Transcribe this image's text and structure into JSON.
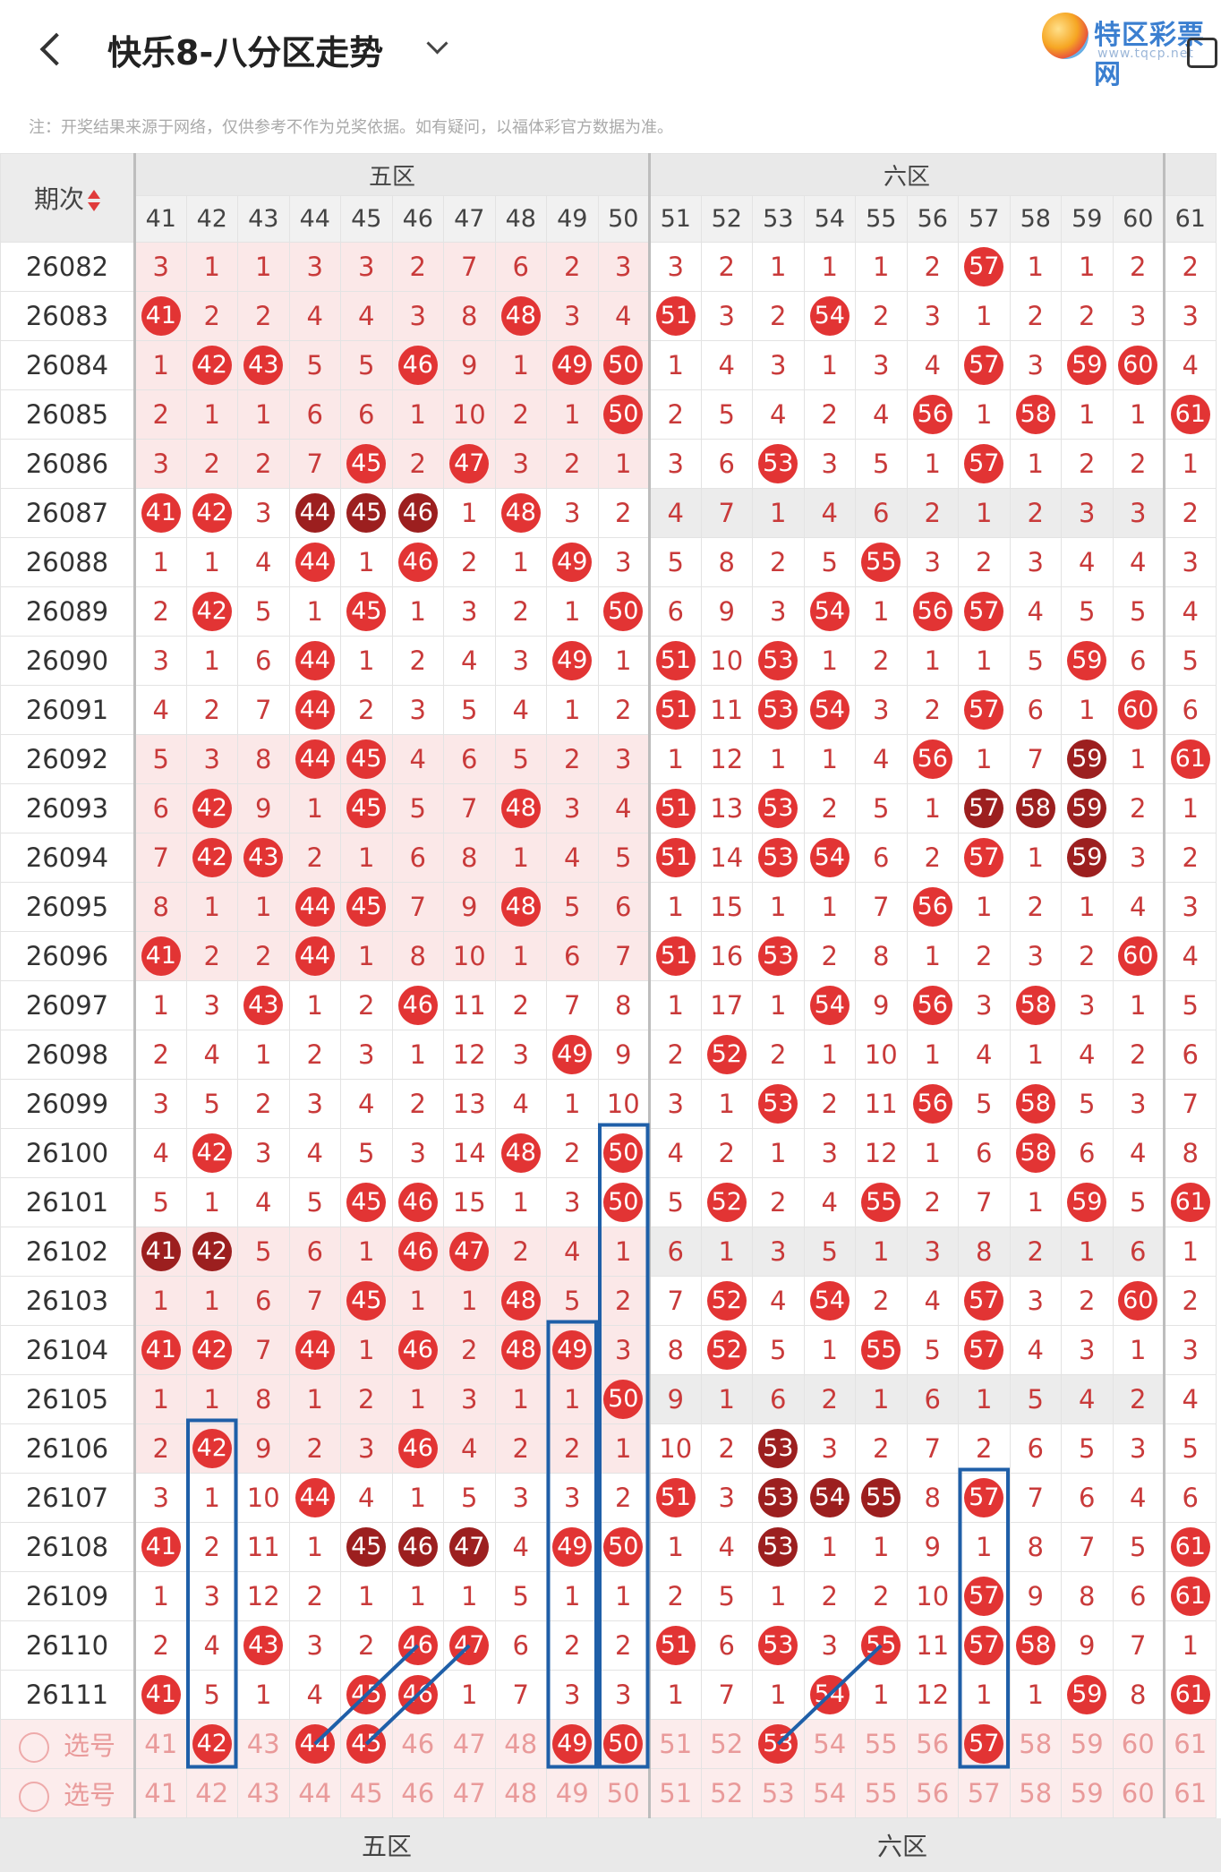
{
  "header": {
    "title": "快乐8-八分区走势"
  },
  "logo": {
    "text": "特区彩票网",
    "sub": "www.tqcp.net"
  },
  "note": "注：开奖结果来源于网络，仅供参考不作为兑奖依据。如有疑问，以福体彩官方数据为准。",
  "table": {
    "period_header": "期次",
    "zones": [
      "五区",
      "六区"
    ],
    "columns": [
      41,
      42,
      43,
      44,
      45,
      46,
      47,
      48,
      49,
      50,
      51,
      52,
      53,
      54,
      55,
      56,
      57,
      58,
      59,
      60,
      61
    ],
    "rows": [
      {
        "p": "26082",
        "v": [
          "3",
          "1",
          "1",
          "3",
          "3",
          "2",
          "7",
          "6",
          "2",
          "3",
          "3",
          "2",
          "1",
          "1",
          "1",
          "2",
          "57",
          "1",
          "1",
          "2",
          "2"
        ]
      },
      {
        "p": "26083",
        "v": [
          "41",
          "2",
          "2",
          "4",
          "4",
          "3",
          "8",
          "48",
          "3",
          "4",
          "51",
          "3",
          "2",
          "54",
          "2",
          "3",
          "1",
          "2",
          "2",
          "3",
          "3"
        ]
      },
      {
        "p": "26084",
        "v": [
          "1",
          "42",
          "43",
          "5",
          "5",
          "46",
          "9",
          "1",
          "49",
          "50",
          "1",
          "4",
          "3",
          "1",
          "3",
          "4",
          "57",
          "3",
          "59",
          "60",
          "4"
        ]
      },
      {
        "p": "26085",
        "v": [
          "2",
          "1",
          "1",
          "6",
          "6",
          "1",
          "10",
          "2",
          "1",
          "50",
          "2",
          "5",
          "4",
          "2",
          "4",
          "56",
          "1",
          "58",
          "1",
          "1",
          "61"
        ]
      },
      {
        "p": "26086",
        "v": [
          "3",
          "2",
          "2",
          "7",
          "45",
          "2",
          "47",
          "3",
          "2",
          "1",
          "3",
          "6",
          "53",
          "3",
          "5",
          "1",
          "57",
          "1",
          "2",
          "2",
          "1"
        ]
      },
      {
        "p": "26087",
        "v": [
          "41",
          "42",
          "3",
          "44",
          "45",
          "46",
          "1",
          "48",
          "3",
          "2",
          "4",
          "7",
          "1",
          "4",
          "6",
          "2",
          "1",
          "2",
          "3",
          "3",
          "2"
        ]
      },
      {
        "p": "26088",
        "v": [
          "1",
          "1",
          "4",
          "44",
          "1",
          "46",
          "2",
          "1",
          "49",
          "3",
          "5",
          "8",
          "2",
          "5",
          "55",
          "3",
          "2",
          "3",
          "4",
          "4",
          "3"
        ]
      },
      {
        "p": "26089",
        "v": [
          "2",
          "42",
          "5",
          "1",
          "45",
          "1",
          "3",
          "2",
          "1",
          "50",
          "6",
          "9",
          "3",
          "54",
          "1",
          "56",
          "57",
          "4",
          "5",
          "5",
          "4"
        ]
      },
      {
        "p": "26090",
        "v": [
          "3",
          "1",
          "6",
          "44",
          "1",
          "2",
          "4",
          "3",
          "49",
          "1",
          "51",
          "10",
          "53",
          "1",
          "2",
          "1",
          "1",
          "5",
          "59",
          "6",
          "5"
        ]
      },
      {
        "p": "26091",
        "v": [
          "4",
          "2",
          "7",
          "44",
          "2",
          "3",
          "5",
          "4",
          "1",
          "2",
          "51",
          "11",
          "53",
          "54",
          "3",
          "2",
          "57",
          "6",
          "1",
          "60",
          "6"
        ]
      },
      {
        "p": "26092",
        "v": [
          "5",
          "3",
          "8",
          "44",
          "45",
          "4",
          "6",
          "5",
          "2",
          "3",
          "1",
          "12",
          "1",
          "1",
          "4",
          "56",
          "1",
          "7",
          "59",
          "1",
          "61"
        ]
      },
      {
        "p": "26093",
        "v": [
          "6",
          "42",
          "9",
          "1",
          "45",
          "5",
          "7",
          "48",
          "3",
          "4",
          "51",
          "13",
          "53",
          "2",
          "5",
          "1",
          "57",
          "58",
          "59",
          "2",
          "1"
        ]
      },
      {
        "p": "26094",
        "v": [
          "7",
          "42",
          "43",
          "2",
          "1",
          "6",
          "8",
          "1",
          "4",
          "5",
          "51",
          "14",
          "53",
          "54",
          "6",
          "2",
          "57",
          "1",
          "59",
          "3",
          "2"
        ]
      },
      {
        "p": "26095",
        "v": [
          "8",
          "1",
          "1",
          "44",
          "45",
          "7",
          "9",
          "48",
          "5",
          "6",
          "1",
          "15",
          "1",
          "1",
          "7",
          "56",
          "1",
          "2",
          "1",
          "4",
          "3"
        ]
      },
      {
        "p": "26096",
        "v": [
          "41",
          "2",
          "2",
          "44",
          "1",
          "8",
          "10",
          "1",
          "6",
          "7",
          "51",
          "16",
          "53",
          "2",
          "8",
          "1",
          "2",
          "3",
          "2",
          "60",
          "4"
        ]
      },
      {
        "p": "26097",
        "v": [
          "1",
          "3",
          "43",
          "1",
          "2",
          "46",
          "11",
          "2",
          "7",
          "8",
          "1",
          "17",
          "1",
          "54",
          "9",
          "56",
          "3",
          "58",
          "3",
          "1",
          "5"
        ]
      },
      {
        "p": "26098",
        "v": [
          "2",
          "4",
          "1",
          "2",
          "3",
          "1",
          "12",
          "3",
          "49",
          "9",
          "2",
          "52",
          "2",
          "1",
          "10",
          "1",
          "4",
          "1",
          "4",
          "2",
          "6"
        ]
      },
      {
        "p": "26099",
        "v": [
          "3",
          "5",
          "2",
          "3",
          "4",
          "2",
          "13",
          "4",
          "1",
          "10",
          "3",
          "1",
          "53",
          "2",
          "11",
          "56",
          "5",
          "58",
          "5",
          "3",
          "7"
        ]
      },
      {
        "p": "26100",
        "v": [
          "4",
          "42",
          "3",
          "4",
          "5",
          "3",
          "14",
          "48",
          "2",
          "50",
          "4",
          "2",
          "1",
          "3",
          "12",
          "1",
          "6",
          "58",
          "6",
          "4",
          "8"
        ]
      },
      {
        "p": "26101",
        "v": [
          "5",
          "1",
          "4",
          "5",
          "45",
          "46",
          "15",
          "1",
          "3",
          "50",
          "5",
          "52",
          "2",
          "4",
          "55",
          "2",
          "7",
          "1",
          "59",
          "5",
          "61"
        ]
      },
      {
        "p": "26102",
        "v": [
          "41",
          "42",
          "5",
          "6",
          "1",
          "46",
          "47",
          "2",
          "4",
          "1",
          "6",
          "1",
          "3",
          "5",
          "1",
          "3",
          "8",
          "2",
          "1",
          "6",
          "1"
        ]
      },
      {
        "p": "26103",
        "v": [
          "1",
          "1",
          "6",
          "7",
          "45",
          "1",
          "1",
          "48",
          "5",
          "2",
          "7",
          "52",
          "4",
          "54",
          "2",
          "4",
          "57",
          "3",
          "2",
          "60",
          "2"
        ]
      },
      {
        "p": "26104",
        "v": [
          "41",
          "42",
          "7",
          "44",
          "1",
          "46",
          "2",
          "48",
          "49",
          "3",
          "8",
          "52",
          "5",
          "1",
          "55",
          "5",
          "57",
          "4",
          "3",
          "1",
          "3"
        ]
      },
      {
        "p": "26105",
        "v": [
          "1",
          "1",
          "8",
          "1",
          "2",
          "1",
          "3",
          "1",
          "1",
          "50",
          "9",
          "1",
          "6",
          "2",
          "1",
          "6",
          "1",
          "5",
          "4",
          "2",
          "4"
        ]
      },
      {
        "p": "26106",
        "v": [
          "2",
          "42",
          "9",
          "2",
          "3",
          "46",
          "4",
          "2",
          "2",
          "1",
          "10",
          "2",
          "53",
          "3",
          "2",
          "7",
          "2",
          "6",
          "5",
          "3",
          "5"
        ]
      },
      {
        "p": "26107",
        "v": [
          "3",
          "1",
          "10",
          "44",
          "4",
          "1",
          "5",
          "3",
          "3",
          "2",
          "51",
          "3",
          "53",
          "54",
          "55",
          "8",
          "57",
          "7",
          "6",
          "4",
          "6"
        ]
      },
      {
        "p": "26108",
        "v": [
          "41",
          "2",
          "11",
          "1",
          "45",
          "46",
          "47",
          "4",
          "49",
          "50",
          "1",
          "4",
          "53",
          "1",
          "1",
          "9",
          "1",
          "8",
          "7",
          "5",
          "61"
        ]
      },
      {
        "p": "26109",
        "v": [
          "1",
          "3",
          "12",
          "2",
          "1",
          "1",
          "1",
          "5",
          "1",
          "1",
          "2",
          "5",
          "1",
          "2",
          "2",
          "10",
          "57",
          "9",
          "8",
          "6",
          "61"
        ]
      },
      {
        "p": "26110",
        "v": [
          "2",
          "4",
          "43",
          "3",
          "2",
          "46",
          "47",
          "6",
          "2",
          "2",
          "51",
          "6",
          "53",
          "3",
          "55",
          "11",
          "57",
          "58",
          "9",
          "7",
          "1"
        ]
      },
      {
        "p": "26111",
        "v": [
          "41",
          "5",
          "1",
          "4",
          "45",
          "46",
          "1",
          "7",
          "3",
          "3",
          "1",
          "7",
          "1",
          "54",
          "1",
          "12",
          "1",
          "1",
          "59",
          "8",
          "61"
        ]
      }
    ],
    "select_label": "选号",
    "select_rows": [
      {
        "v": [
          "41",
          "42",
          "43",
          "44",
          "45",
          "46",
          "47",
          "48",
          "49",
          "50",
          "51",
          "52",
          "53",
          "54",
          "55",
          "56",
          "57",
          "58",
          "59",
          "60",
          "61"
        ]
      },
      {
        "v": [
          "41",
          "42",
          "43",
          "44",
          "45",
          "46",
          "47",
          "48",
          "49",
          "50",
          "51",
          "52",
          "53",
          "54",
          "55",
          "56",
          "57",
          "58",
          "59",
          "60",
          "61"
        ]
      }
    ]
  },
  "styles": {
    "dark_balls": {
      "26087": [
        "44",
        "45",
        "46"
      ],
      "26102": [
        "41",
        "42"
      ],
      "26108": [
        "45",
        "46",
        "47",
        "53"
      ],
      "26107": [
        "53",
        "54",
        "55"
      ],
      "26106": [
        "53"
      ],
      "26093": [
        "57",
        "58",
        "59"
      ],
      "26092": [
        "59"
      ],
      "26094": [
        "59"
      ]
    },
    "selected_balls": [
      "42",
      "44",
      "45",
      "49",
      "50",
      "53",
      "57"
    ],
    "accent": "#e23434",
    "dark": "#9c1f1f",
    "box": "#1f5fa8"
  }
}
